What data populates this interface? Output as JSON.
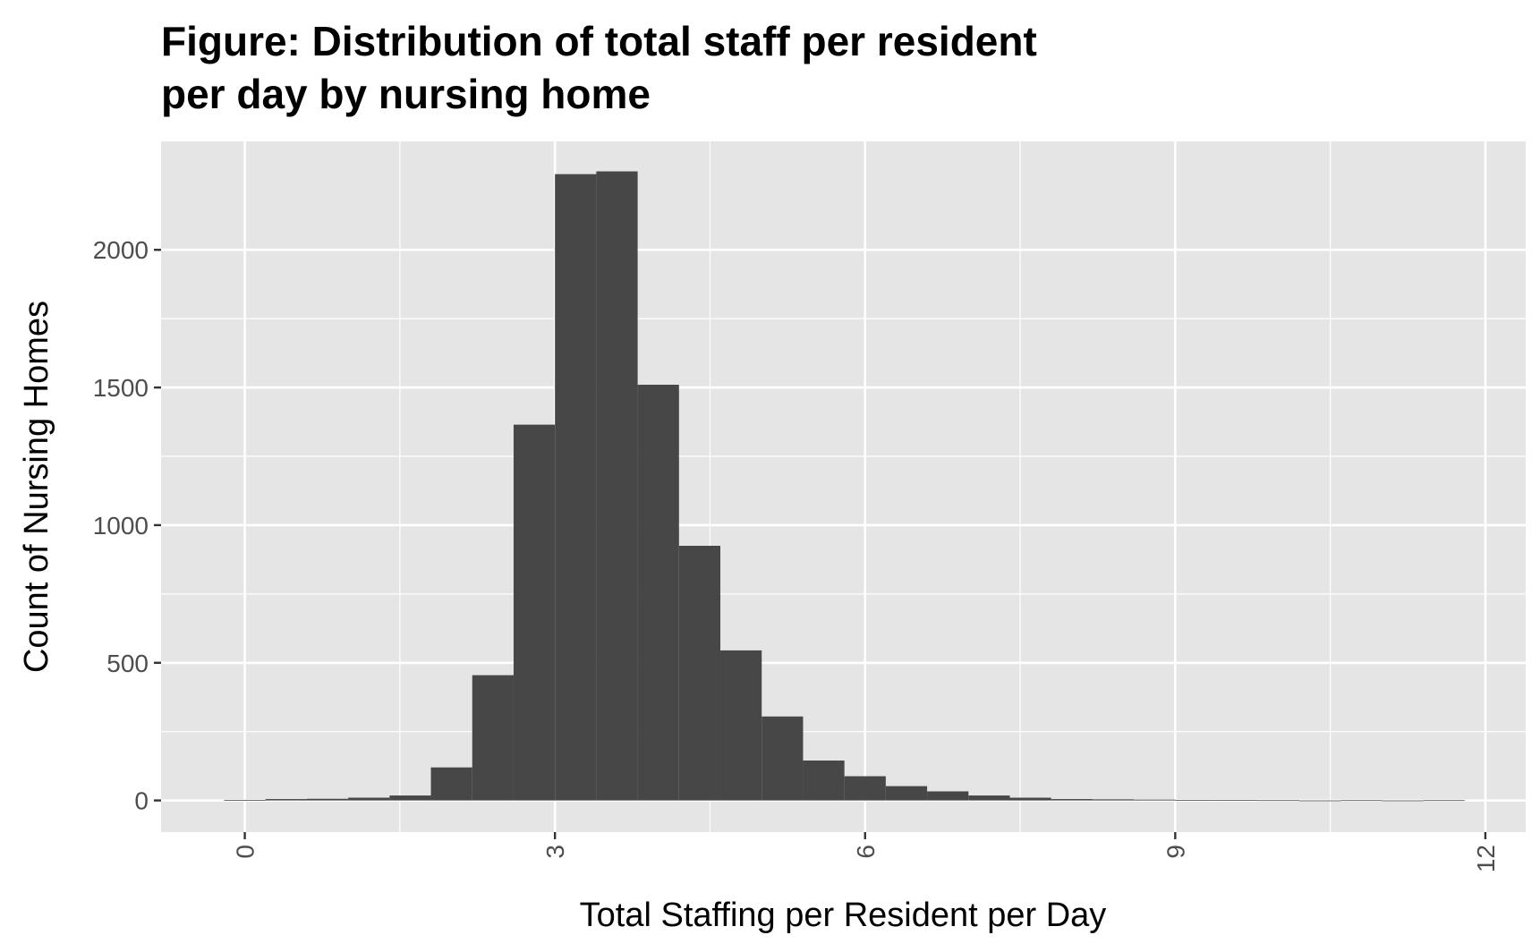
{
  "chart_data": {
    "type": "histogram",
    "title": [
      "Figure: Distribution of total staff per resident",
      "per day by nursing home"
    ],
    "x_label": "Total Staffing per Resident per Day",
    "y_label": "Count of Nursing Homes",
    "bins": [
      -0.2,
      0.2,
      0.6,
      1.0,
      1.4,
      1.8,
      2.2,
      2.6,
      3.0,
      3.4,
      3.8,
      4.2,
      4.6,
      5.0,
      5.4,
      5.8,
      6.2,
      6.6,
      7.0,
      7.4,
      7.8,
      8.2,
      8.6,
      9.0,
      9.4,
      9.8,
      10.2,
      10.6,
      11.0,
      11.4,
      11.8
    ],
    "counts": [
      2,
      5,
      6,
      10,
      18,
      120,
      455,
      1365,
      2275,
      2285,
      1510,
      925,
      545,
      305,
      145,
      88,
      52,
      33,
      18,
      10,
      5,
      4,
      3,
      2,
      2,
      1,
      0,
      1,
      0,
      1
    ],
    "color": "#474747",
    "xlim": [
      -0.81,
      12.39
    ],
    "xticks": [
      0,
      3,
      6,
      9,
      12
    ],
    "ylim": [
      -115,
      2394
    ],
    "yticks": [
      0,
      500,
      1000,
      1500,
      2000
    ],
    "grid": true
  }
}
